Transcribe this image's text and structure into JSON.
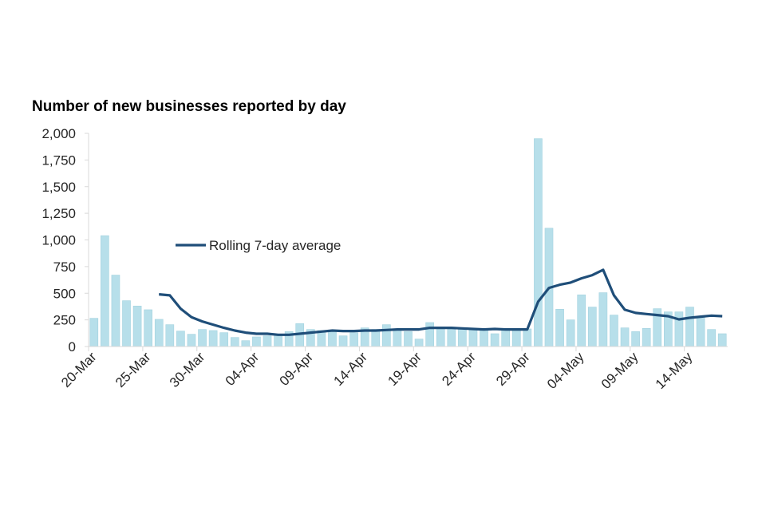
{
  "chart_data": {
    "type": "bar",
    "title": "Number of new businesses reported by day",
    "categories": [
      "20-Mar",
      null,
      null,
      null,
      null,
      "25-Mar",
      null,
      null,
      null,
      null,
      "30-Mar",
      null,
      null,
      null,
      null,
      "04-Apr",
      null,
      null,
      null,
      null,
      "09-Apr",
      null,
      null,
      null,
      null,
      "14-Apr",
      null,
      null,
      null,
      null,
      "19-Apr",
      null,
      null,
      null,
      null,
      "24-Apr",
      null,
      null,
      null,
      null,
      "29-Apr",
      null,
      null,
      null,
      null,
      "04-May",
      null,
      null,
      null,
      null,
      "09-May",
      null,
      null,
      null,
      null,
      "14-May",
      null,
      null,
      null
    ],
    "series": [
      {
        "type": "bar",
        "color": "#b7dfea",
        "values": [
          265,
          1040,
          670,
          430,
          380,
          345,
          255,
          205,
          145,
          115,
          160,
          150,
          130,
          85,
          55,
          90,
          100,
          110,
          140,
          215,
          160,
          150,
          140,
          100,
          130,
          175,
          160,
          205,
          160,
          140,
          70,
          225,
          175,
          165,
          160,
          155,
          150,
          120,
          165,
          150,
          165,
          1950,
          1110,
          350,
          250,
          485,
          370,
          505,
          295,
          175,
          140,
          170,
          355,
          325,
          325,
          370,
          285,
          160,
          120
        ]
      },
      {
        "type": "line",
        "name": "Rolling 7-day average",
        "color": "#1f4e79",
        "values": [
          null,
          null,
          null,
          null,
          null,
          null,
          490,
          480,
          355,
          275,
          235,
          205,
          175,
          150,
          130,
          120,
          120,
          110,
          110,
          120,
          130,
          140,
          150,
          145,
          145,
          150,
          150,
          155,
          160,
          160,
          160,
          175,
          175,
          175,
          170,
          165,
          160,
          165,
          160,
          160,
          160,
          420,
          550,
          580,
          600,
          640,
          670,
          720,
          480,
          345,
          315,
          305,
          295,
          285,
          255,
          270,
          280,
          290,
          285
        ]
      }
    ],
    "ylim": [
      0,
      2000
    ],
    "yticks": [
      0,
      {
        "value": 250,
        "label": "250"
      },
      {
        "value": 500,
        "label": "500"
      },
      {
        "value": 750,
        "label": "750"
      },
      {
        "value": 1000,
        "label": "1,000"
      },
      {
        "value": 1250,
        "label": "1,250"
      },
      {
        "value": 1500,
        "label": "1,500"
      },
      {
        "value": 1750,
        "label": "1,750"
      },
      {
        "value": 2000,
        "label": "2,000"
      }
    ],
    "grid": false
  }
}
